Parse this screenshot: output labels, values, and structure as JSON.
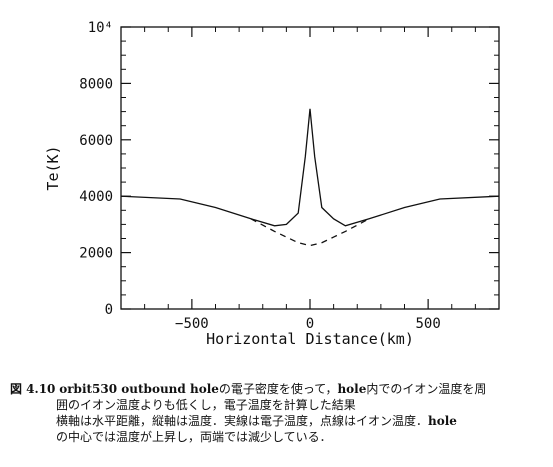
{
  "chart_data": {
    "type": "line",
    "title": "",
    "xlabel": "Horizontal Distance(km)",
    "ylabel": "Te(K)",
    "xlim": [
      -800,
      800
    ],
    "ylim": [
      0,
      10000
    ],
    "x_ticks": [
      -500,
      0,
      500
    ],
    "x_tick_labels": [
      "−500",
      "0",
      "500"
    ],
    "y_ticks": [
      0,
      2000,
      4000,
      6000,
      8000,
      10000
    ],
    "y_tick_labels": [
      "0",
      "2000",
      "4000",
      "6000",
      "8000",
      "10⁴"
    ],
    "grid": false,
    "series": [
      {
        "style": "solid",
        "x": [
          -800,
          -550,
          -400,
          -250,
          -150,
          -100,
          -50,
          -20,
          0,
          20,
          50,
          100,
          150,
          250,
          400,
          550,
          800
        ],
        "y": [
          4000,
          3900,
          3600,
          3200,
          2950,
          3000,
          3400,
          5400,
          7100,
          5400,
          3600,
          3200,
          2950,
          3200,
          3600,
          3900,
          4000
        ]
      },
      {
        "style": "dashed",
        "x": [
          -250,
          -150,
          -100,
          -50,
          0,
          50,
          100,
          150,
          250
        ],
        "y": [
          3200,
          2750,
          2550,
          2350,
          2250,
          2350,
          2550,
          2750,
          3200
        ]
      }
    ]
  },
  "caption": {
    "fig_label": "図 4.10",
    "line1_bold": "orbit530 outbound hole",
    "line1_rest": "の電子密度を使って，",
    "line1_bold2": "hole",
    "line1_tail": "内でのイオン温度を周",
    "line2": "囲のイオン温度よりも低くし，電子温度を計算した結果",
    "line3_pre": "横軸は水平距離，縦軸は温度．実線は電子温度，点線はイオン温度．",
    "line3_bold": "hole",
    "line4": "の中心では温度が上昇し，両端では減少している．"
  }
}
